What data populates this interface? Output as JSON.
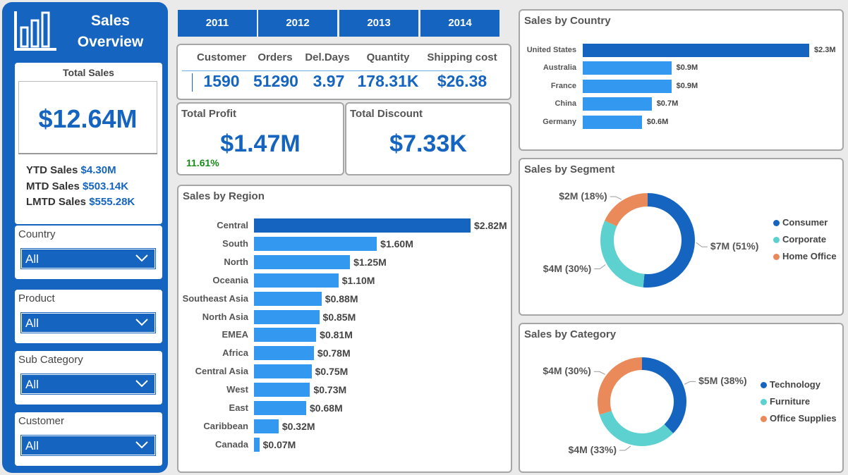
{
  "sidebar": {
    "title_line1": "Sales",
    "title_line2": "Overview",
    "total_sales_label": "Total Sales",
    "total_sales_value": "$12.64M",
    "ytd_label": "YTD Sales",
    "ytd_value": "$4.30M",
    "mtd_label": "MTD Sales",
    "mtd_value": "$503.14K",
    "lmtd_label": "LMTD Sales",
    "lmtd_value": "$555.28K",
    "filters": [
      {
        "label": "Country",
        "value": "All"
      },
      {
        "label": "Product",
        "value": "All"
      },
      {
        "label": "Sub Category",
        "value": "All"
      },
      {
        "label": "Customer",
        "value": "All"
      }
    ]
  },
  "years": [
    "2011",
    "2012",
    "2013",
    "2014"
  ],
  "metrics": {
    "headers": [
      "Customer",
      "Orders",
      "Del.Days",
      "Quantity",
      "Shipping cost"
    ],
    "values": [
      "1590",
      "51290",
      "3.97",
      "178.31K",
      "$26.38"
    ]
  },
  "profit": {
    "label": "Total Profit",
    "value": "$1.47M",
    "margin": "11.61%"
  },
  "discount": {
    "label": "Total Discount",
    "value": "$7.33K"
  },
  "colors": {
    "accent": "#1565c0",
    "bar": "#3399f0",
    "consumer": "#1565c0",
    "corporate": "#5dd0d0",
    "home_office": "#ea8a5a",
    "positive": "#1a8a1a"
  },
  "chart_data": [
    {
      "type": "bar",
      "title": "Sales by Country",
      "orientation": "horizontal",
      "categories": [
        "United States",
        "Australia",
        "France",
        "China",
        "Germany"
      ],
      "values": [
        2.3,
        0.9,
        0.9,
        0.7,
        0.6
      ],
      "labels": [
        "$2.3M",
        "$0.9M",
        "$0.9M",
        "$0.7M",
        "$0.6M"
      ],
      "unit": "$M"
    },
    {
      "type": "bar",
      "title": "Sales by Region",
      "orientation": "horizontal",
      "categories": [
        "Central",
        "South",
        "North",
        "Oceania",
        "Southeast Asia",
        "North Asia",
        "EMEA",
        "Africa",
        "Central Asia",
        "West",
        "East",
        "Caribbean",
        "Canada"
      ],
      "values": [
        2.82,
        1.6,
        1.25,
        1.1,
        0.88,
        0.85,
        0.81,
        0.78,
        0.75,
        0.73,
        0.68,
        0.32,
        0.07
      ],
      "labels": [
        "$2.82M",
        "$1.60M",
        "$1.25M",
        "$1.10M",
        "$0.88M",
        "$0.85M",
        "$0.81M",
        "$0.78M",
        "$0.75M",
        "$0.73M",
        "$0.68M",
        "$0.32M",
        "$0.07M"
      ],
      "unit": "$M"
    },
    {
      "type": "pie",
      "title": "Sales by Segment",
      "categories": [
        "Consumer",
        "Corporate",
        "Home Office"
      ],
      "values": [
        51,
        30,
        18
      ],
      "labels": [
        "$7M (51%)",
        "$4M (30%)",
        "$2M (18%)"
      ]
    },
    {
      "type": "pie",
      "title": "Sales by Category",
      "categories": [
        "Technology",
        "Furniture",
        "Office Supplies"
      ],
      "values": [
        38,
        33,
        30
      ],
      "labels": [
        "$5M (38%)",
        "$4M (33%)",
        "$4M (30%)"
      ]
    }
  ]
}
